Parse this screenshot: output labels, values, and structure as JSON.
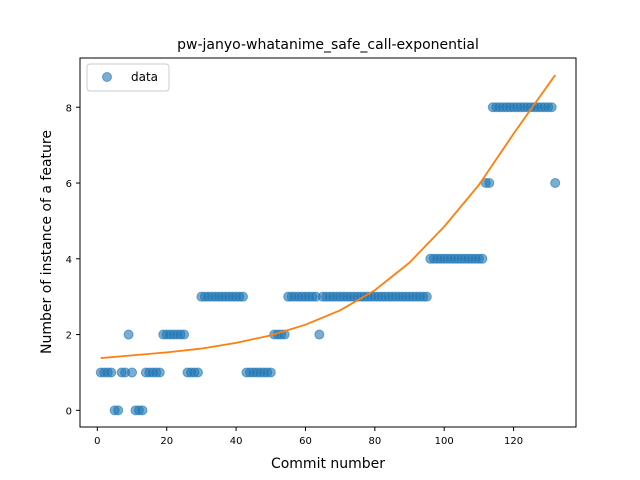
{
  "chart_data": {
    "type": "scatter",
    "title": "pw-janyo-whatanime_safe_call-exponential",
    "xlabel": "Commit number",
    "ylabel": "Number of instance of a feature",
    "xlim": [
      -5,
      138
    ],
    "ylim": [
      -0.44,
      9.3
    ],
    "xticks": [
      0,
      20,
      40,
      60,
      80,
      100,
      120
    ],
    "yticks": [
      0,
      2,
      4,
      6,
      8
    ],
    "grid": false,
    "legend": {
      "position": "top-left",
      "entries": [
        "data"
      ]
    },
    "colors": {
      "data": "#1f77b4",
      "fit": "#ff7f0e"
    },
    "series": [
      {
        "name": "data",
        "kind": "scatter",
        "x": [
          1,
          2,
          3,
          4,
          5,
          6,
          7,
          8,
          9,
          10,
          11,
          12,
          13,
          14,
          15,
          16,
          17,
          18,
          19,
          20,
          21,
          22,
          23,
          24,
          25,
          26,
          27,
          28,
          29,
          30,
          31,
          32,
          33,
          34,
          35,
          36,
          37,
          38,
          39,
          40,
          41,
          42,
          43,
          44,
          45,
          46,
          47,
          48,
          49,
          50,
          51,
          52,
          53,
          54,
          55,
          56,
          57,
          58,
          59,
          60,
          61,
          62,
          63,
          64,
          65,
          66,
          67,
          68,
          69,
          70,
          71,
          72,
          73,
          74,
          75,
          76,
          77,
          78,
          79,
          80,
          81,
          82,
          83,
          84,
          85,
          86,
          87,
          88,
          89,
          90,
          91,
          92,
          93,
          94,
          95,
          96,
          97,
          98,
          99,
          100,
          101,
          102,
          103,
          104,
          105,
          106,
          107,
          108,
          109,
          110,
          111,
          112,
          113,
          114,
          115,
          116,
          117,
          118,
          119,
          120,
          121,
          122,
          123,
          124,
          125,
          126,
          127,
          128,
          129,
          130,
          131,
          132
        ],
        "y": [
          1,
          1,
          1,
          1,
          0,
          0,
          1,
          1,
          2,
          1,
          0,
          0,
          0,
          1,
          1,
          1,
          1,
          1,
          2,
          2,
          2,
          2,
          2,
          2,
          2,
          1,
          1,
          1,
          1,
          3,
          3,
          3,
          3,
          3,
          3,
          3,
          3,
          3,
          3,
          3,
          3,
          3,
          1,
          1,
          1,
          1,
          1,
          1,
          1,
          1,
          2,
          2,
          2,
          2,
          3,
          3,
          3,
          3,
          3,
          3,
          3,
          3,
          3,
          2,
          3,
          3,
          3,
          3,
          3,
          3,
          3,
          3,
          3,
          3,
          3,
          3,
          3,
          3,
          3,
          3,
          3,
          3,
          3,
          3,
          3,
          3,
          3,
          3,
          3,
          3,
          3,
          3,
          3,
          3,
          3,
          4,
          4,
          4,
          4,
          4,
          4,
          4,
          4,
          4,
          4,
          4,
          4,
          4,
          4,
          4,
          4,
          6,
          6,
          8,
          8,
          8,
          8,
          8,
          8,
          8,
          8,
          8,
          8,
          8,
          8,
          8,
          8,
          8,
          8,
          8,
          8,
          6
        ]
      },
      {
        "name": "",
        "kind": "line",
        "x": [
          1,
          10,
          20,
          30,
          40,
          50,
          60,
          70,
          80,
          90,
          100,
          110,
          120,
          125,
          132
        ],
        "y": [
          1.38,
          1.45,
          1.53,
          1.63,
          1.78,
          1.98,
          2.26,
          2.64,
          3.17,
          3.9,
          4.85,
          5.95,
          7.3,
          7.95,
          8.85
        ]
      }
    ]
  }
}
